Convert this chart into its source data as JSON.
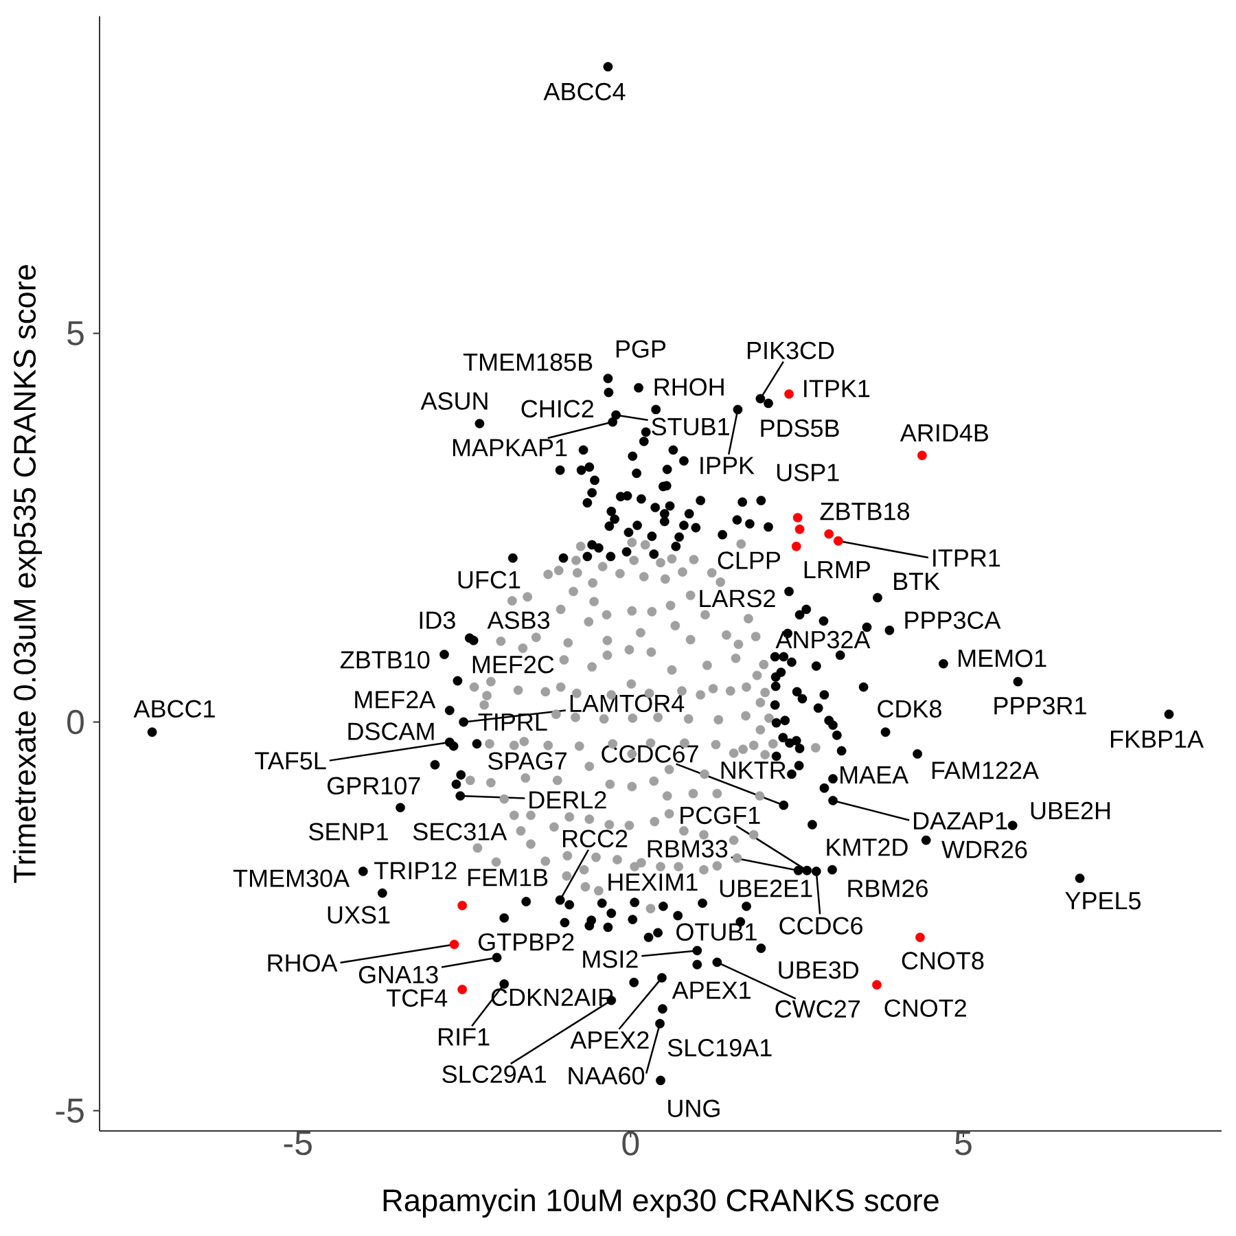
{
  "chart_data": {
    "type": "scatter",
    "xlabel": "Rapamycin 10uM exp30 CRANKS score",
    "ylabel": "Trimetrexate 0.03uM exp535 CRANKS score",
    "xlim": [
      -7.98,
      8.88
    ],
    "ylim": [
      -5.26,
      9.08
    ],
    "xticks": [
      -5,
      0,
      5
    ],
    "yticks": [
      -5,
      0,
      5
    ],
    "marker": "circle",
    "series": [
      {
        "color": "#a0a0a0",
        "x": [
          2.08,
          2.02,
          2.0,
          1.88,
          1.77,
          1.35,
          1.22,
          0.95,
          0.62,
          0.22,
          0.02,
          -0.42,
          -0.82,
          -1.08,
          -1.24,
          -1.55,
          -1.78,
          -1.95,
          -2.1,
          -2.16,
          -2.2,
          -2.12,
          -2.1,
          -1.9,
          -1.75,
          -1.5,
          -1.28,
          -0.96,
          -0.68,
          -0.48,
          0.06,
          0.3,
          0.72,
          1.1,
          1.3,
          1.55,
          1.85,
          1.94,
          2.02,
          2.14,
          1.73,
          1.74,
          1.58,
          1.44,
          1.12,
          0.9,
          0.52,
          0.2,
          -0.16,
          -0.57,
          -0.86,
          -1.05,
          -1.42,
          -1.62,
          -1.69,
          -1.6,
          -1.75,
          -1.58,
          -1.5,
          -1.15,
          -0.95,
          -0.52,
          -0.2,
          0.16,
          0.45,
          0.8,
          1.1,
          1.3,
          1.55,
          1.69,
          1.32,
          1.24,
          1.15,
          0.9,
          0.67,
          0.32,
          0.02,
          -0.36,
          -0.63,
          -0.94,
          -1.0,
          -1.28,
          -1.12,
          -1.24,
          -1.1,
          -0.92,
          -0.62,
          -0.32,
          -0.02,
          0.36,
          0.58,
          0.94,
          1.11,
          1.28,
          0.87,
          0.77,
          0.62,
          0.31,
          -0.02,
          -0.35,
          -0.58,
          -0.81,
          -0.83,
          -0.77,
          -0.62,
          -0.31,
          0.02,
          0.35,
          0.58,
          0.81,
          0.41,
          0.28,
          0.01,
          -0.29,
          -0.4,
          -0.27,
          0.02,
          0.3,
          0.03,
          2.78,
          -2.41,
          -2.3,
          -2.02,
          -2.35,
          1.66,
          -0.75,
          0.45,
          0.05,
          -0.8,
          0.78,
          1.95,
          1.9,
          1.95,
          1.62,
          1.85,
          -1.65,
          -0.7,
          1.6,
          1.05,
          0.6,
          -0.55,
          -1.05,
          0.55,
          0.15,
          -0.35,
          1.5
        ],
        "values": [
          0.05,
          0.38,
          0.74,
          1.1,
          1.33,
          1.8,
          1.92,
          2.09,
          2.1,
          2.28,
          2.31,
          2.0,
          2.08,
          1.95,
          1.9,
          1.61,
          1.56,
          1.04,
          0.52,
          0.34,
          0.22,
          -0.28,
          -0.78,
          -0.99,
          -1.2,
          -1.57,
          -1.79,
          -1.98,
          -2.12,
          -2.17,
          -1.86,
          -2.4,
          -1.86,
          -1.9,
          -1.85,
          -1.52,
          -1.45,
          -0.95,
          -0.42,
          -0.28,
          0.08,
          0.45,
          0.82,
          1.12,
          1.38,
          1.63,
          1.84,
          1.87,
          1.91,
          1.79,
          1.68,
          1.45,
          1.09,
          0.95,
          0.41,
          -0.25,
          -0.3,
          -0.72,
          -1.2,
          -1.35,
          -1.72,
          -1.74,
          -1.77,
          -1.81,
          -1.86,
          -1.4,
          -1.45,
          -0.92,
          -0.4,
          -0.35,
          0.03,
          0.43,
          0.73,
          1.06,
          1.24,
          1.42,
          1.43,
          1.38,
          1.29,
          1.02,
          0.8,
          0.39,
          0.1,
          -0.3,
          -0.75,
          -1.22,
          -1.25,
          -1.32,
          -1.33,
          -1.28,
          -1.18,
          -0.92,
          -0.67,
          -0.29,
          0.04,
          0.4,
          0.67,
          0.9,
          0.93,
          0.86,
          0.71,
          0.37,
          0.06,
          -0.31,
          -0.57,
          -0.8,
          -0.83,
          -0.76,
          -0.61,
          -0.27,
          0.06,
          0.37,
          0.49,
          0.35,
          0.04,
          -0.28,
          -0.41,
          -0.27,
          0.05,
          -0.33,
          -0.75,
          -1.62,
          -1.8,
          0.45,
          2.29,
          2.26,
          2.05,
          2.08,
          1.92,
          1.93,
          0.25,
          0.6,
          -0.1,
          1.0,
          -0.3,
          -1.4,
          -1.9,
          -1.75,
          0.35,
          1.5,
          1.55,
          0.45,
          -0.95,
          1.15,
          1.05,
          0.4
        ]
      },
      {
        "color": "#000000",
        "x": [
          -0.34,
          -0.34,
          -0.33,
          0.12,
          -2.27,
          -0.27,
          -0.22,
          1.61,
          1.95,
          2.07,
          1.96,
          1.38,
          2.38,
          -1.77,
          3.71,
          3.89,
          2.9,
          4.7,
          5.82,
          8.09,
          3.83,
          4.31,
          3.04,
          3.04,
          5.74,
          4.44,
          6.75,
          2.3,
          2.42,
          2.65,
          2.52,
          2.73,
          3.03,
          2.79,
          0.06,
          1.65,
          1.96,
          1.0,
          1.0,
          1.3,
          0.05,
          0.47,
          0.48,
          0.44,
          0.45,
          -0.29,
          -1.9,
          -2.01,
          -1.9,
          -1.57,
          -1.06,
          -3.73,
          -4.02,
          -3.46,
          -2.62,
          -2.94,
          -2.56,
          -2.55,
          -2.66,
          -2.72,
          -2.31,
          -2.51,
          -2.72,
          -2.6,
          -2.8,
          -2.42,
          -2.36,
          -7.19,
          0.38,
          0.23,
          0.2,
          -0.71,
          0.64,
          0.8,
          0.03,
          0.09,
          0.55,
          -1.06,
          -0.74,
          -0.62,
          -0.54,
          -0.58,
          -0.65,
          -0.15,
          -0.05,
          0.16,
          0.49,
          0.54,
          0.37,
          0.59,
          1.05,
          -0.29,
          -0.24,
          -0.32,
          0.1,
          -0.03,
          0.32,
          0.51,
          0.51,
          0.88,
          0.8,
          0.98,
          0.73,
          0.68,
          -0.58,
          -0.48,
          -0.06,
          0.35,
          -0.65,
          -0.3,
          -1.01,
          1.68,
          1.6,
          1.79,
          2.07,
          2.54,
          2.64,
          3.55,
          2.36,
          2.17,
          2.3,
          2.42,
          2.79,
          3.15,
          2.26,
          2.18,
          2.18,
          3.5,
          2.91,
          2.5,
          2.58,
          2.82,
          2.17,
          2.98,
          3.04,
          3.1,
          3.17,
          2.19,
          2.32,
          2.29,
          2.39,
          2.49,
          2.54,
          2.19,
          2.53,
          2.91,
          -0.92,
          -0.99,
          -0.43,
          -0.29,
          -0.59,
          -0.62,
          -0.34,
          0.03,
          0.49,
          0.71,
          0.27,
          0.41,
          1.08,
          1.74
        ],
        "values": [
          8.43,
          4.42,
          4.24,
          4.3,
          3.84,
          3.86,
          3.95,
          4.02,
          4.16,
          4.1,
          2.85,
          2.41,
          1.68,
          2.11,
          1.6,
          1.18,
          1.3,
          0.75,
          0.52,
          0.1,
          -0.13,
          -0.41,
          -0.73,
          -1.01,
          -1.33,
          -1.52,
          -2.01,
          -1.07,
          -0.67,
          -1.91,
          -1.91,
          -1.32,
          -1.9,
          -1.92,
          -2.32,
          -2.57,
          -2.91,
          -2.94,
          -3.12,
          -3.09,
          -3.35,
          -3.29,
          -3.69,
          -3.88,
          -4.61,
          -3.58,
          -3.37,
          -3.03,
          -2.52,
          -2.31,
          -2.29,
          -2.2,
          -1.92,
          -1.1,
          -0.8,
          -0.55,
          -0.95,
          -0.68,
          -0.31,
          -0.26,
          -0.28,
          0.0,
          0.15,
          0.53,
          0.87,
          1.08,
          1.05,
          -0.13,
          4.02,
          3.73,
          3.61,
          3.5,
          3.5,
          3.36,
          3.42,
          3.2,
          3.25,
          3.24,
          3.24,
          3.28,
          3.11,
          2.95,
          2.82,
          2.9,
          2.91,
          2.87,
          3.03,
          3.04,
          2.76,
          2.78,
          2.85,
          2.71,
          2.61,
          2.52,
          2.53,
          2.44,
          2.39,
          2.68,
          2.58,
          2.68,
          2.53,
          2.5,
          2.38,
          2.26,
          2.28,
          2.24,
          2.19,
          2.16,
          2.13,
          2.13,
          2.11,
          2.83,
          2.6,
          2.55,
          2.51,
          1.38,
          1.45,
          1.22,
          1.14,
          0.84,
          0.84,
          0.77,
          0.72,
          0.86,
          0.64,
          0.58,
          0.46,
          0.45,
          0.35,
          0.39,
          0.3,
          0.18,
          0.22,
          0.02,
          -0.04,
          -0.17,
          -0.37,
          -0.01,
          0.02,
          -0.2,
          -0.27,
          -0.24,
          -0.34,
          -0.44,
          -0.56,
          -0.85,
          -2.35,
          -2.58,
          -2.33,
          -2.46,
          -2.55,
          -2.62,
          -2.64,
          -2.54,
          -2.37,
          -2.49,
          -2.77,
          -2.71,
          -2.33,
          -2.37
        ]
      },
      {
        "color": "#ff0000",
        "x": [
          2.38,
          4.38,
          2.51,
          2.54,
          2.49,
          2.98,
          3.12,
          4.35,
          3.7,
          -2.53,
          -2.65,
          -2.53
        ],
        "values": [
          4.22,
          3.43,
          2.63,
          2.48,
          2.26,
          2.42,
          2.33,
          -2.77,
          -3.38,
          -2.36,
          -2.86,
          -3.44
        ]
      }
    ],
    "annotations": [
      {
        "text": "ABCC4",
        "x": -0.34,
        "y": 8.43
      },
      {
        "text": "PGP",
        "x": -0.34,
        "y": 4.42
      },
      {
        "text": "TMEM185B",
        "x": -0.33,
        "y": 4.24
      },
      {
        "text": "RHOH",
        "x": 0.12,
        "y": 4.3
      },
      {
        "text": "ASUN",
        "x": -2.27,
        "y": 3.84
      },
      {
        "text": "CHIC2",
        "x": -0.27,
        "y": 3.86
      },
      {
        "text": "STUB1",
        "x": -0.22,
        "y": 3.95
      },
      {
        "text": "MAPKAP1",
        "x": -0.27,
        "y": 3.86
      },
      {
        "text": "IPPK",
        "x": 1.61,
        "y": 4.02
      },
      {
        "text": "PIK3CD",
        "x": 1.95,
        "y": 4.16
      },
      {
        "text": "PDS5B",
        "x": 2.07,
        "y": 4.1
      },
      {
        "text": "ITPK1",
        "x": 2.38,
        "y": 4.22
      },
      {
        "text": "USP1",
        "x": 1.96,
        "y": 2.85
      },
      {
        "text": "ARID4B",
        "x": 4.38,
        "y": 3.43
      },
      {
        "text": "ZBTB18",
        "x": 2.51,
        "y": 2.63
      },
      {
        "text": "ITPR1",
        "x": 3.12,
        "y": 2.33
      },
      {
        "text": "CLPP",
        "x": 1.38,
        "y": 2.41
      },
      {
        "text": "LRMP",
        "x": 2.49,
        "y": 2.26
      },
      {
        "text": "LARS2",
        "x": 2.38,
        "y": 1.68
      },
      {
        "text": "UFC1",
        "x": -1.77,
        "y": 2.11
      },
      {
        "text": "BTK",
        "x": 3.71,
        "y": 1.6
      },
      {
        "text": "PPP3CA",
        "x": 3.89,
        "y": 1.18
      },
      {
        "text": "ANP32A",
        "x": 2.9,
        "y": 1.3
      },
      {
        "text": "MEMO1",
        "x": 4.7,
        "y": 0.75
      },
      {
        "text": "PPP3R1",
        "x": 5.82,
        "y": 0.52
      },
      {
        "text": "FKBP1A",
        "x": 8.09,
        "y": 0.1
      },
      {
        "text": "CDK8",
        "x": 3.83,
        "y": -0.13
      },
      {
        "text": "FAM122A",
        "x": 4.31,
        "y": -0.41
      },
      {
        "text": "MAEA",
        "x": 3.04,
        "y": -0.73
      },
      {
        "text": "DAZAP1",
        "x": 3.04,
        "y": -1.01
      },
      {
        "text": "UBE2H",
        "x": 5.74,
        "y": -1.33
      },
      {
        "text": "WDR26",
        "x": 4.44,
        "y": -1.52
      },
      {
        "text": "YPEL5",
        "x": 6.75,
        "y": -2.01
      },
      {
        "text": "CCDC67",
        "x": 2.3,
        "y": -1.07
      },
      {
        "text": "NKTR",
        "x": 2.42,
        "y": -0.67
      },
      {
        "text": "PCGF1",
        "x": 2.65,
        "y": -1.91
      },
      {
        "text": "RBM33",
        "x": 2.52,
        "y": -1.91
      },
      {
        "text": "KMT2D",
        "x": 2.73,
        "y": -1.32
      },
      {
        "text": "UBE2E1",
        "x": 2.52,
        "y": -1.91
      },
      {
        "text": "RBM26",
        "x": 3.03,
        "y": -1.9
      },
      {
        "text": "CCDC6",
        "x": 2.79,
        "y": -1.92
      },
      {
        "text": "HEXIM1",
        "x": 0.06,
        "y": -2.32
      },
      {
        "text": "OTUB1",
        "x": 1.65,
        "y": -2.57
      },
      {
        "text": "CNOT8",
        "x": 4.35,
        "y": -2.77
      },
      {
        "text": "UBE3D",
        "x": 1.96,
        "y": -2.91
      },
      {
        "text": "MSI2",
        "x": 1.0,
        "y": -2.94
      },
      {
        "text": "APEX1",
        "x": 1.0,
        "y": -3.12
      },
      {
        "text": "CWC27",
        "x": 1.3,
        "y": -3.09
      },
      {
        "text": "CNOT2",
        "x": 3.7,
        "y": -3.38
      },
      {
        "text": "CDKN2AIP",
        "x": 0.05,
        "y": -3.35
      },
      {
        "text": "APEX2",
        "x": 0.47,
        "y": -3.29
      },
      {
        "text": "SLC19A1",
        "x": 0.48,
        "y": -3.69
      },
      {
        "text": "NAA60",
        "x": 0.44,
        "y": -3.88
      },
      {
        "text": "UNG",
        "x": 0.45,
        "y": -4.61
      },
      {
        "text": "SLC29A1",
        "x": -0.29,
        "y": -3.58
      },
      {
        "text": "RIF1",
        "x": -1.9,
        "y": -3.37
      },
      {
        "text": "TCF4",
        "x": -2.53,
        "y": -3.44
      },
      {
        "text": "GNA13",
        "x": -2.01,
        "y": -3.03
      },
      {
        "text": "RHOA",
        "x": -2.65,
        "y": -2.86
      },
      {
        "text": "GTPBP2",
        "x": -1.9,
        "y": -2.52
      },
      {
        "text": "FEM1B",
        "x": -1.57,
        "y": -2.31
      },
      {
        "text": "RCC2",
        "x": -1.06,
        "y": -2.29
      },
      {
        "text": "UXS1",
        "x": -3.73,
        "y": -2.2
      },
      {
        "text": "TRIP12",
        "x": -4.02,
        "y": -1.92
      },
      {
        "text": "TMEM30A",
        "x": -4.02,
        "y": -1.92
      },
      {
        "text": "SENP1",
        "x": -3.46,
        "y": -1.1
      },
      {
        "text": "SEC31A",
        "x": -2.62,
        "y": -0.8
      },
      {
        "text": "GPR107",
        "x": -2.94,
        "y": -0.55
      },
      {
        "text": "DERL2",
        "x": -2.56,
        "y": -0.95
      },
      {
        "text": "SPAG7",
        "x": -2.55,
        "y": -0.68
      },
      {
        "text": "TAF5L",
        "x": -2.72,
        "y": -0.26
      },
      {
        "text": "DSCAM",
        "x": -2.66,
        "y": -0.31
      },
      {
        "text": "TIPRL",
        "x": -2.31,
        "y": -0.28
      },
      {
        "text": "LAMTOR4",
        "x": -2.51,
        "y": 0.0
      },
      {
        "text": "MEF2A",
        "x": -2.72,
        "y": 0.15
      },
      {
        "text": "MEF2C",
        "x": -2.6,
        "y": 0.53
      },
      {
        "text": "ZBTB10",
        "x": -2.8,
        "y": 0.87
      },
      {
        "text": "ID3",
        "x": -2.42,
        "y": 1.08
      },
      {
        "text": "ASB3",
        "x": -2.36,
        "y": 1.05
      },
      {
        "text": "ABCC1",
        "x": -7.19,
        "y": -0.13
      }
    ]
  }
}
